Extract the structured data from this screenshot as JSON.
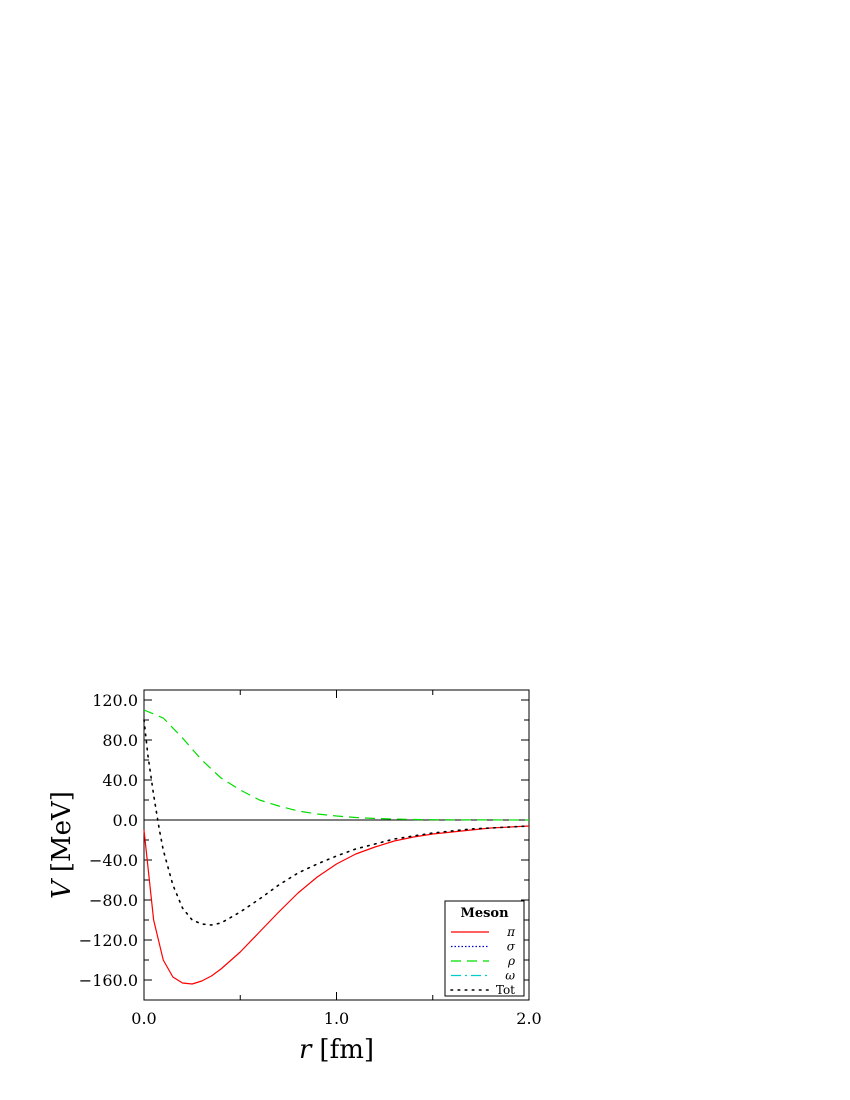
{
  "chart_data": {
    "type": "line",
    "xlabel_var": "r",
    "xlabel_unit": "[fm]",
    "ylabel_var": "V",
    "ylabel_unit": "[MeV]",
    "xlim": [
      0,
      2
    ],
    "ylim": [
      -180,
      130
    ],
    "x_ticks": [
      "0.0",
      "1.0",
      "2.0"
    ],
    "y_ticks": [
      "120.0",
      "80.0",
      "40.0",
      "0.0",
      "-40.0",
      "-80.0",
      "-120.0",
      "-160.0"
    ],
    "y_tick_values": [
      120,
      80,
      40,
      0,
      -40,
      -80,
      -120,
      -160
    ],
    "legend": {
      "title": "Meson",
      "position": "bottom-right"
    },
    "series": [
      {
        "name": "π",
        "color": "#ff0000",
        "dash": "solid",
        "x": [
          0.0,
          0.05,
          0.1,
          0.15,
          0.2,
          0.25,
          0.3,
          0.35,
          0.4,
          0.5,
          0.6,
          0.7,
          0.8,
          0.9,
          1.0,
          1.1,
          1.2,
          1.3,
          1.4,
          1.5,
          1.6,
          1.7,
          1.8,
          1.9,
          2.0
        ],
        "y": [
          -10,
          -100,
          -140,
          -157,
          -163,
          -164,
          -161,
          -156,
          -149,
          -132,
          -112,
          -92,
          -73,
          -57,
          -44,
          -34,
          -27,
          -21,
          -17,
          -14,
          -12,
          -10,
          -8,
          -7,
          -6
        ]
      },
      {
        "name": "σ",
        "color": "#0000cc",
        "dash": "dotted",
        "x": [
          0.0,
          2.0
        ],
        "y": [
          0,
          0
        ]
      },
      {
        "name": "ρ",
        "color": "#00dd00",
        "dash": "dashed",
        "x": [
          0.0,
          0.1,
          0.2,
          0.3,
          0.4,
          0.5,
          0.6,
          0.7,
          0.8,
          0.9,
          1.0,
          1.1,
          1.2,
          1.3,
          1.4,
          1.5,
          1.6,
          1.8,
          2.0
        ],
        "y": [
          110,
          102,
          82,
          60,
          42,
          30,
          20,
          14,
          9,
          6,
          4,
          2.5,
          1.5,
          1,
          0.5,
          0.3,
          0.2,
          0.1,
          0
        ]
      },
      {
        "name": "ω",
        "color": "#00cccc",
        "dash": "dashdot",
        "x": [
          0.0,
          2.0
        ],
        "y": [
          0,
          0
        ]
      },
      {
        "name": "Tot",
        "color": "#000000",
        "dash": "dotted-sparse",
        "x": [
          0.0,
          0.02,
          0.05,
          0.08,
          0.1,
          0.15,
          0.2,
          0.25,
          0.3,
          0.35,
          0.4,
          0.5,
          0.6,
          0.7,
          0.8,
          0.9,
          1.0,
          1.1,
          1.2,
          1.3,
          1.4,
          1.5,
          1.6,
          1.7,
          1.8,
          1.9,
          2.0
        ],
        "y": [
          100,
          65,
          25,
          -10,
          -30,
          -65,
          -88,
          -100,
          -104,
          -105,
          -103,
          -92,
          -79,
          -65,
          -53,
          -44,
          -36,
          -29,
          -24,
          -19,
          -16,
          -13,
          -11,
          -9,
          -8,
          -7,
          -6
        ]
      }
    ]
  }
}
